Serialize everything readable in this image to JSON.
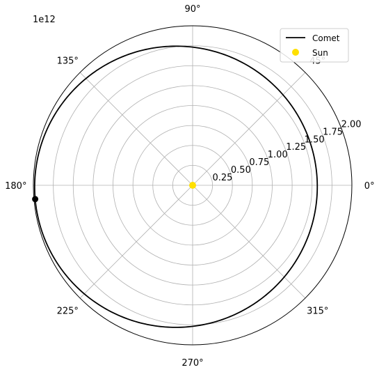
{
  "chart_data": {
    "type": "polar-line",
    "title": "",
    "scale_multiplier_label": "1e12",
    "angle_ticks": [
      {
        "deg": 0,
        "label": "0°"
      },
      {
        "deg": 45,
        "label": "45°"
      },
      {
        "deg": 90,
        "label": "90°"
      },
      {
        "deg": 135,
        "label": "135°"
      },
      {
        "deg": 180,
        "label": "180°"
      },
      {
        "deg": 225,
        "label": "225°"
      },
      {
        "deg": 270,
        "label": "270°"
      },
      {
        "deg": 315,
        "label": "315°"
      }
    ],
    "radial_ticks": [
      {
        "value": 0.25,
        "label": "0.25"
      },
      {
        "value": 0.5,
        "label": "0.50"
      },
      {
        "value": 0.75,
        "label": "0.75"
      },
      {
        "value": 1.0,
        "label": "1.00"
      },
      {
        "value": 1.25,
        "label": "1.25"
      },
      {
        "value": 1.5,
        "label": "1.50"
      },
      {
        "value": 1.75,
        "label": "1.75"
      },
      {
        "value": 2.0,
        "label": "2.00"
      }
    ],
    "rlim": [
      0,
      2.0
    ],
    "grid": true,
    "legend_position": "top-right",
    "series": [
      {
        "name": "Comet",
        "color": "#000000",
        "orbit": {
          "perihelion": 1.565,
          "aphelion": 1.985,
          "aphelion_angle_deg": 185
        }
      },
      {
        "name": "Sun",
        "color": "#FFE000",
        "points": [
          {
            "theta": 0,
            "r": 0
          }
        ]
      }
    ],
    "current_position": {
      "theta": 185,
      "r": 1.985,
      "color": "#000000"
    }
  }
}
